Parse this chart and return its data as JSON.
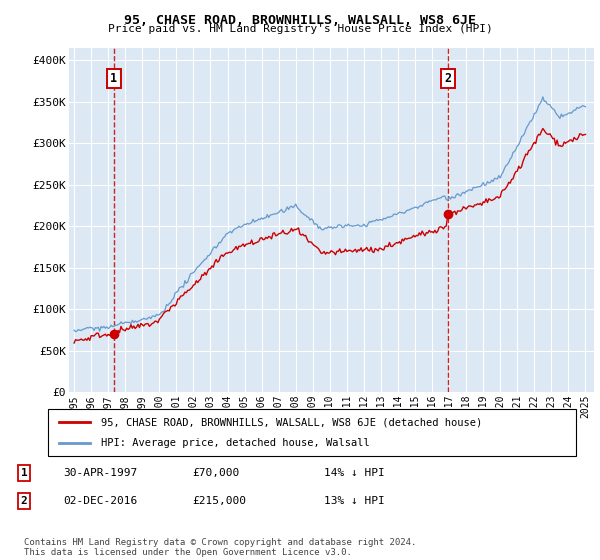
{
  "title": "95, CHASE ROAD, BROWNHILLS, WALSALL, WS8 6JE",
  "subtitle": "Price paid vs. HM Land Registry's House Price Index (HPI)",
  "ylabel_ticks": [
    "£0",
    "£50K",
    "£100K",
    "£150K",
    "£200K",
    "£250K",
    "£300K",
    "£350K",
    "£400K"
  ],
  "ytick_values": [
    0,
    50000,
    100000,
    150000,
    200000,
    250000,
    300000,
    350000,
    400000
  ],
  "ylim": [
    0,
    415000
  ],
  "xlim_start": 1994.7,
  "xlim_end": 2025.5,
  "plot_bg_color": "#dce9f5",
  "grid_color": "#ffffff",
  "legend_label_red": "95, CHASE ROAD, BROWNHILLS, WALSALL, WS8 6JE (detached house)",
  "legend_label_blue": "HPI: Average price, detached house, Walsall",
  "sale1_date": 1997.33,
  "sale1_price": 70000,
  "sale2_date": 2016.92,
  "sale2_price": 215000,
  "footnote": "Contains HM Land Registry data © Crown copyright and database right 2024.\nThis data is licensed under the Open Government Licence v3.0.",
  "table": [
    {
      "num": "1",
      "date": "30-APR-1997",
      "price": "£70,000",
      "hpi": "14% ↓ HPI"
    },
    {
      "num": "2",
      "date": "02-DEC-2016",
      "price": "£215,000",
      "hpi": "13% ↓ HPI"
    }
  ],
  "red_color": "#cc0000",
  "blue_color": "#6699cc",
  "xtick_years": [
    1995,
    1996,
    1997,
    1998,
    1999,
    2000,
    2001,
    2002,
    2003,
    2004,
    2005,
    2006,
    2007,
    2008,
    2009,
    2010,
    2011,
    2012,
    2013,
    2014,
    2015,
    2016,
    2017,
    2018,
    2019,
    2020,
    2021,
    2022,
    2023,
    2024,
    2025
  ]
}
